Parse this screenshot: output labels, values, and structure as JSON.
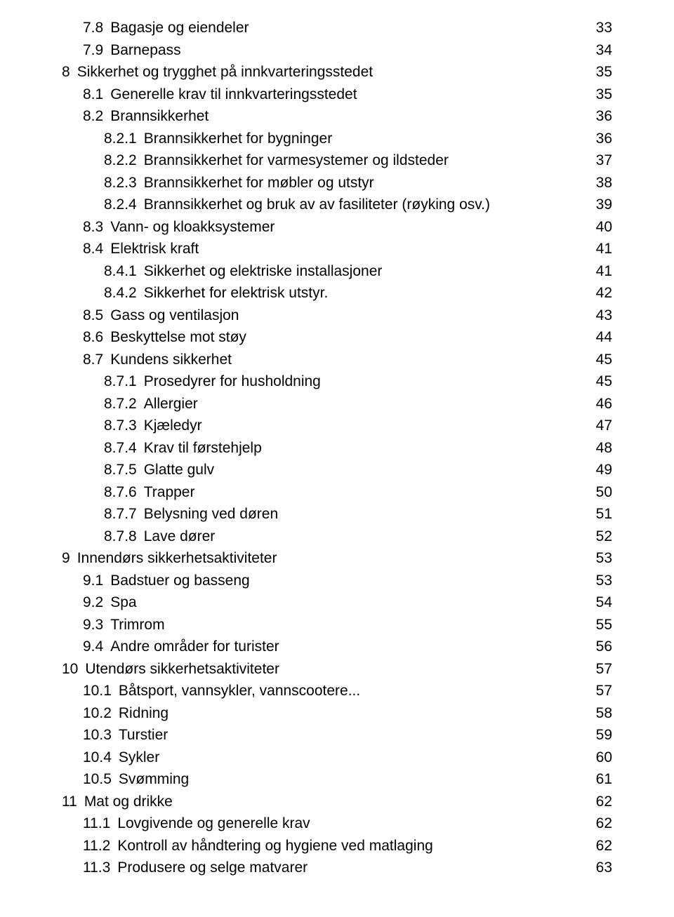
{
  "toc": [
    {
      "indent": 1,
      "num": "7.8",
      "title": "Bagasje og eiendeler",
      "page": "33"
    },
    {
      "indent": 1,
      "num": "7.9",
      "title": "Barnepass",
      "page": "34"
    },
    {
      "indent": 0,
      "num": "8",
      "title": "Sikkerhet og trygghet på innkvarteringsstedet",
      "page": "35"
    },
    {
      "indent": 1,
      "num": "8.1",
      "title": "Generelle krav til innkvarteringsstedet",
      "page": "35"
    },
    {
      "indent": 1,
      "num": "8.2",
      "title": "Brannsikkerhet",
      "page": "36"
    },
    {
      "indent": 2,
      "num": "8.2.1",
      "title": "Brannsikkerhet for bygninger",
      "page": "36"
    },
    {
      "indent": 2,
      "num": "8.2.2",
      "title": "Brannsikkerhet for varmesystemer og ildsteder",
      "page": "37"
    },
    {
      "indent": 2,
      "num": "8.2.3",
      "title": "Brannsikkerhet for møbler og utstyr",
      "page": "38"
    },
    {
      "indent": 2,
      "num": "8.2.4",
      "title": "Brannsikkerhet og bruk av av fasiliteter (røyking osv.)",
      "page": "39"
    },
    {
      "indent": 1,
      "num": "8.3",
      "title": "Vann- og kloakksystemer",
      "page": "40"
    },
    {
      "indent": 1,
      "num": "8.4",
      "title": "Elektrisk kraft",
      "page": "41"
    },
    {
      "indent": 2,
      "num": "8.4.1",
      "title": "Sikkerhet og elektriske installasjoner",
      "page": "41"
    },
    {
      "indent": 2,
      "num": "8.4.2",
      "title": "Sikkerhet for elektrisk utstyr.",
      "page": "42"
    },
    {
      "indent": 1,
      "num": "8.5",
      "title": "Gass og ventilasjon",
      "page": "43"
    },
    {
      "indent": 1,
      "num": "8.6",
      "title": "Beskyttelse mot støy",
      "page": "44"
    },
    {
      "indent": 1,
      "num": "8.7",
      "title": "Kundens sikkerhet",
      "page": "45"
    },
    {
      "indent": 2,
      "num": "8.7.1",
      "title": "Prosedyrer for husholdning",
      "page": "45"
    },
    {
      "indent": 2,
      "num": "8.7.2",
      "title": "Allergier",
      "page": "46"
    },
    {
      "indent": 2,
      "num": "8.7.3",
      "title": "Kjæledyr",
      "page": "47"
    },
    {
      "indent": 2,
      "num": "8.7.4",
      "title": "Krav til førstehjelp",
      "page": "48"
    },
    {
      "indent": 2,
      "num": "8.7.5",
      "title": "Glatte gulv",
      "page": "49"
    },
    {
      "indent": 2,
      "num": "8.7.6",
      "title": "Trapper",
      "page": "50"
    },
    {
      "indent": 2,
      "num": "8.7.7",
      "title": "Belysning ved døren",
      "page": "51"
    },
    {
      "indent": 2,
      "num": "8.7.8",
      "title": "Lave dører",
      "page": "52"
    },
    {
      "indent": 0,
      "num": "9",
      "title": "Innendørs sikkerhetsaktiviteter",
      "page": "53"
    },
    {
      "indent": 1,
      "num": "9.1",
      "title": "Badstuer og basseng",
      "page": "53"
    },
    {
      "indent": 1,
      "num": "9.2",
      "title": "Spa",
      "page": "54"
    },
    {
      "indent": 1,
      "num": "9.3",
      "title": "Trimrom",
      "page": "55"
    },
    {
      "indent": 1,
      "num": "9.4",
      "title": "Andre områder for turister",
      "page": "56"
    },
    {
      "indent": 0,
      "num": "10",
      "title": "Utendørs sikkerhetsaktiviteter",
      "page": "57"
    },
    {
      "indent": 1,
      "num": "10.1",
      "title": "Båtsport, vannsykler, vannscootere...",
      "page": "57"
    },
    {
      "indent": 1,
      "num": "10.2",
      "title": "Ridning",
      "page": "58"
    },
    {
      "indent": 1,
      "num": "10.3",
      "title": "Turstier",
      "page": "59"
    },
    {
      "indent": 1,
      "num": "10.4",
      "title": "Sykler",
      "page": "60"
    },
    {
      "indent": 1,
      "num": "10.5",
      "title": "Svømming",
      "page": "61"
    },
    {
      "indent": 0,
      "num": "11",
      "title": "Mat og drikke",
      "page": "62"
    },
    {
      "indent": 1,
      "num": "11.1",
      "title": "Lovgivende og generelle krav",
      "page": "62"
    },
    {
      "indent": 1,
      "num": "11.2",
      "title": "Kontroll av håndtering og hygiene ved matlaging",
      "page": "62"
    },
    {
      "indent": 1,
      "num": "11.3",
      "title": "Produsere og selge matvarer",
      "page": "63"
    }
  ],
  "colors": {
    "text": "#000000",
    "background": "#ffffff"
  },
  "typography": {
    "font_family": "Arial",
    "font_size_pt": 16,
    "line_height": 1.5
  }
}
